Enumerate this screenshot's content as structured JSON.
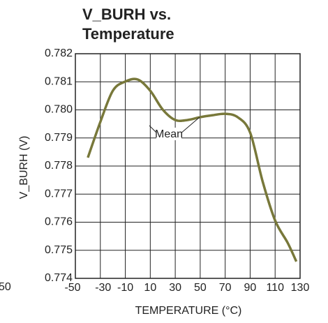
{
  "chart_data": {
    "type": "line",
    "title": [
      "V_BURH vs.",
      "Temperature"
    ],
    "x_label": "TEMPERATURE (°C)",
    "y_label": "V_BURH (V)",
    "annotation": "Mean",
    "edge_text": "50",
    "x": [
      -40,
      -30,
      -20,
      -10,
      0,
      10,
      20,
      30,
      40,
      50,
      60,
      70,
      80,
      90,
      100,
      110,
      120,
      127
    ],
    "series": [
      {
        "name": "Mean",
        "color": "#78783a",
        "values": [
          0.7783,
          0.77957,
          0.78068,
          0.78101,
          0.78108,
          0.78068,
          0.78001,
          0.77964,
          0.77964,
          0.77974,
          0.77981,
          0.77986,
          0.77974,
          0.77919,
          0.77745,
          0.77606,
          0.77527,
          0.7746
        ]
      }
    ],
    "xlim": [
      -50,
      130
    ],
    "xticks": [
      -50,
      -30,
      -10,
      10,
      30,
      50,
      70,
      90,
      110,
      130
    ],
    "ylim": [
      0.774,
      0.782
    ],
    "yticks": [
      0.774,
      0.775,
      0.776,
      0.777,
      0.778,
      0.779,
      {
        "value": 0.78,
        "label": "0.780"
      },
      0.781,
      0.782
    ],
    "grid": true
  }
}
